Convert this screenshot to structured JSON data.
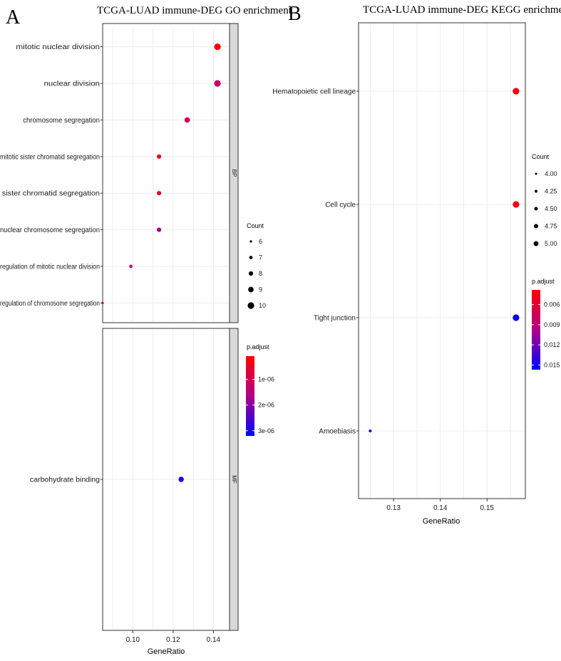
{
  "panels": {
    "a": {
      "label": "A",
      "title": "TCGA-LUAD immune-DEG GO enrichment"
    },
    "b": {
      "label": "B",
      "title": "TCGA-LUAD immune-DEG KEGG enrichment"
    }
  },
  "chart_data": [
    {
      "type": "scatter",
      "title": "TCGA-LUAD immune-DEG GO enrichment",
      "xlabel": "GeneRatio",
      "ylabel": "",
      "xlim": [
        0.085,
        0.148
      ],
      "xticks": [
        "0.10",
        "0.12",
        "0.14"
      ],
      "xtick_values": [
        0.1,
        0.12,
        0.14
      ],
      "facets": [
        {
          "name": "BP",
          "series": [
            {
              "term": "mitotic nuclear division",
              "gene_ratio": 0.142,
              "count": 10,
              "p_adjust": 1e-07
            },
            {
              "term": "nuclear division",
              "gene_ratio": 0.142,
              "count": 10,
              "p_adjust": 1.2e-06
            },
            {
              "term": "chromosome segregation",
              "gene_ratio": 0.127,
              "count": 9,
              "p_adjust": 1.1e-06
            },
            {
              "term": "mitotic sister chromatid segregation",
              "gene_ratio": 0.113,
              "count": 8,
              "p_adjust": 4e-07
            },
            {
              "term": "sister chromatid segregation",
              "gene_ratio": 0.113,
              "count": 8,
              "p_adjust": 5e-07
            },
            {
              "term": "nuclear chromosome segregation",
              "gene_ratio": 0.113,
              "count": 8,
              "p_adjust": 1.8e-06
            },
            {
              "term": "regulation of mitotic nuclear division",
              "gene_ratio": 0.099,
              "count": 7,
              "p_adjust": 1.4e-06
            },
            {
              "term": "regulation of chromosome segregation",
              "gene_ratio": 0.085,
              "count": 6,
              "p_adjust": 8e-07
            }
          ]
        },
        {
          "name": "MF",
          "series": [
            {
              "term": "carbohydrate binding",
              "gene_ratio": 0.124,
              "count": 8.8,
              "p_adjust": 3e-06
            }
          ]
        }
      ],
      "legend_count": {
        "title": "Count",
        "labels": [
          "6",
          "7",
          "8",
          "9",
          "10"
        ],
        "values": [
          6,
          7,
          8,
          9,
          10
        ]
      },
      "legend_color": {
        "title": "p.adjust",
        "labels": [
          "1e-06",
          "2e-06",
          "3e-06"
        ],
        "values": [
          1e-06,
          2e-06,
          3e-06
        ],
        "range": [
          1e-07,
          3.2e-06
        ],
        "low_color": "#ff0000",
        "high_color": "#0000ff"
      }
    },
    {
      "type": "scatter",
      "title": "TCGA-LUAD immune-DEG KEGG enrichment",
      "xlabel": "GeneRatio",
      "ylabel": "",
      "xlim": [
        0.1225,
        0.1582
      ],
      "xticks": [
        "0.13",
        "0.14",
        "0.15"
      ],
      "xtick_values": [
        0.13,
        0.14,
        0.15
      ],
      "series": [
        {
          "term": "Hematopoietic cell lineage",
          "gene_ratio": 0.1562,
          "count": 5,
          "p_adjust": 0.0045
        },
        {
          "term": "Cell cycle",
          "gene_ratio": 0.1562,
          "count": 5,
          "p_adjust": 0.0048
        },
        {
          "term": "Tight junction",
          "gene_ratio": 0.1562,
          "count": 5,
          "p_adjust": 0.0155
        },
        {
          "term": "Amoebiasis",
          "gene_ratio": 0.125,
          "count": 4,
          "p_adjust": 0.0155
        }
      ],
      "legend_count": {
        "title": "Count",
        "labels": [
          "4.00",
          "4.25",
          "4.50",
          "4.75",
          "5.00"
        ],
        "values": [
          4,
          4.25,
          4.5,
          4.75,
          5
        ]
      },
      "legend_color": {
        "title": "p.adjust",
        "labels": [
          "0.006",
          "0.009",
          "0.012",
          "0.015"
        ],
        "values": [
          0.006,
          0.009,
          0.012,
          0.015
        ],
        "range": [
          0.0038,
          0.0157
        ],
        "low_color": "#ff0000",
        "high_color": "#0000ff"
      }
    }
  ]
}
